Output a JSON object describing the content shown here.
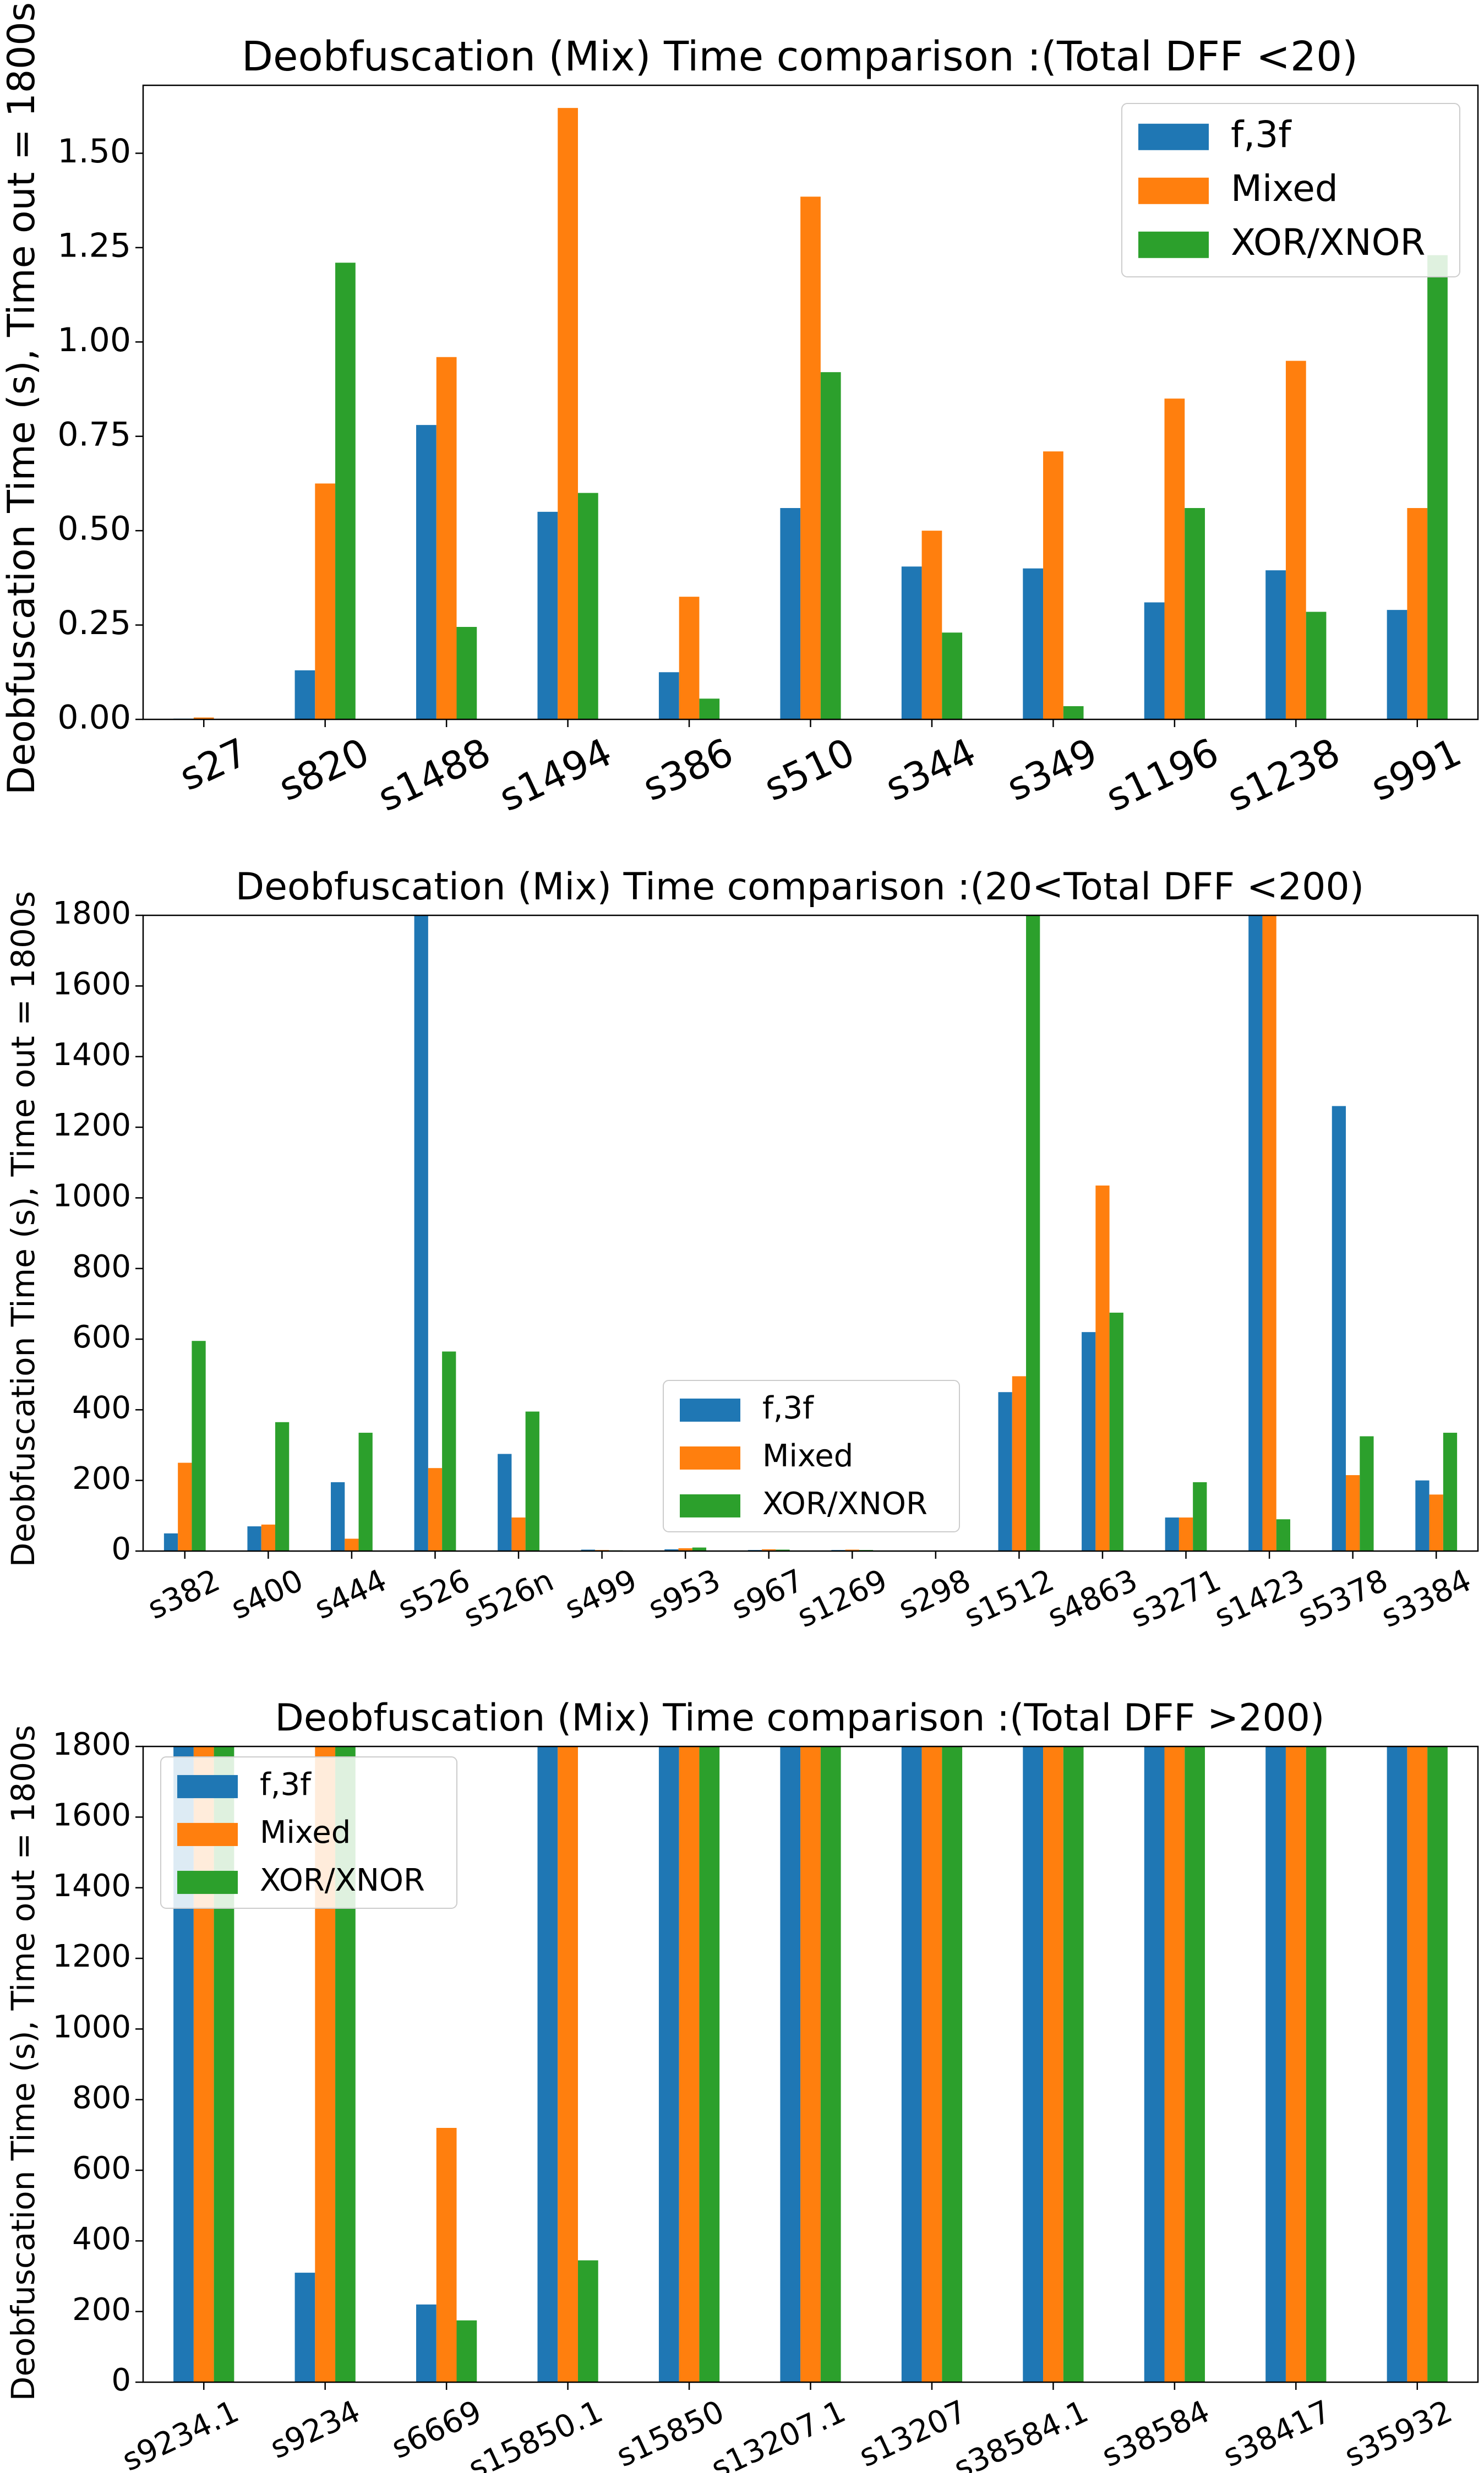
{
  "colors": {
    "f3f": "#1f77b4",
    "mixed": "#ff7f0e",
    "xor": "#2ca02c"
  },
  "chart_data": [
    {
      "type": "bar",
      "title": "Deobfuscation (Mix) Time comparison :(Total DFF <20)",
      "xlabel": "",
      "ylabel": "Deobfuscation Time (s), Time out = 1800s",
      "ylim": [
        0,
        1.68
      ],
      "yticks": [
        0,
        0.25,
        0.5,
        0.75,
        1.0,
        1.25,
        1.5
      ],
      "ytick_labels": [
        "0.00",
        "0.25",
        "0.50",
        "0.75",
        "1.00",
        "1.25",
        "1.50"
      ],
      "categories": [
        "s27",
        "s820",
        "s1488",
        "s1494",
        "s386",
        "s510",
        "s344",
        "s349",
        "s1196",
        "s1238",
        "s991"
      ],
      "series": [
        {
          "name": "f,3f",
          "values": [
            0.002,
            0.13,
            0.78,
            0.55,
            0.125,
            0.56,
            0.405,
            0.4,
            0.31,
            0.395,
            0.29
          ]
        },
        {
          "name": "Mixed",
          "values": [
            0.005,
            0.625,
            0.96,
            1.62,
            0.325,
            1.385,
            0.5,
            0.71,
            0.85,
            0.95,
            0.56
          ]
        },
        {
          "name": "XOR/XNOR",
          "values": [
            0.0,
            1.21,
            0.245,
            0.6,
            0.055,
            0.92,
            0.23,
            0.035,
            0.56,
            0.285,
            1.23
          ]
        }
      ],
      "legend": "upper right"
    },
    {
      "type": "bar",
      "title": "Deobfuscation (Mix) Time comparison :(20<Total DFF <200)",
      "xlabel": "",
      "ylabel": "Deobfuscation Time (s), Time out = 1800s",
      "ylim": [
        0,
        1800
      ],
      "yticks": [
        0,
        200,
        400,
        600,
        800,
        1000,
        1200,
        1400,
        1600,
        1800
      ],
      "ytick_labels": [
        "0",
        "200",
        "400",
        "600",
        "800",
        "1000",
        "1200",
        "1400",
        "1600",
        "1800"
      ],
      "categories": [
        "s382",
        "s400",
        "s444",
        "s526",
        "s526n",
        "s499",
        "s953",
        "s967",
        "s1269",
        "s298",
        "s1512",
        "s4863",
        "s3271",
        "s1423",
        "s5378",
        "s3384"
      ],
      "series": [
        {
          "name": "f,3f",
          "values": [
            50,
            70,
            195,
            1800,
            275,
            4,
            5,
            3,
            3,
            1,
            450,
            620,
            95,
            1800,
            1260,
            200
          ]
        },
        {
          "name": "Mixed",
          "values": [
            250,
            75,
            35,
            235,
            95,
            3,
            8,
            5,
            4,
            1,
            495,
            1035,
            95,
            1800,
            215,
            160
          ]
        },
        {
          "name": "XOR/XNOR",
          "values": [
            595,
            365,
            335,
            565,
            395,
            2,
            10,
            4,
            3,
            1,
            1800,
            675,
            195,
            90,
            325,
            335
          ]
        }
      ],
      "legend": "lower center"
    },
    {
      "type": "bar",
      "title": "Deobfuscation (Mix) Time comparison :(Total DFF >200)",
      "xlabel": "",
      "ylabel": "Deobfuscation Time (s), Time out = 1800s",
      "ylim": [
        0,
        1800
      ],
      "yticks": [
        0,
        200,
        400,
        600,
        800,
        1000,
        1200,
        1400,
        1600,
        1800
      ],
      "ytick_labels": [
        "0",
        "200",
        "400",
        "600",
        "800",
        "1000",
        "1200",
        "1400",
        "1600",
        "1800"
      ],
      "categories": [
        "s9234.1",
        "s9234",
        "s6669",
        "s15850.1",
        "s15850",
        "s13207.1",
        "s13207",
        "s38584.1",
        "s38584",
        "s38417",
        "s35932"
      ],
      "series": [
        {
          "name": "f,3f",
          "values": [
            1800,
            310,
            220,
            1800,
            1800,
            1800,
            1800,
            1800,
            1800,
            1800,
            1800
          ]
        },
        {
          "name": "Mixed",
          "values": [
            1800,
            1800,
            720,
            1800,
            1800,
            1800,
            1800,
            1800,
            1800,
            1800,
            1800
          ]
        },
        {
          "name": "XOR/XNOR",
          "values": [
            1800,
            1800,
            175,
            345,
            1800,
            1800,
            1800,
            1800,
            1800,
            1800,
            1800
          ]
        }
      ],
      "legend": "upper left"
    }
  ]
}
